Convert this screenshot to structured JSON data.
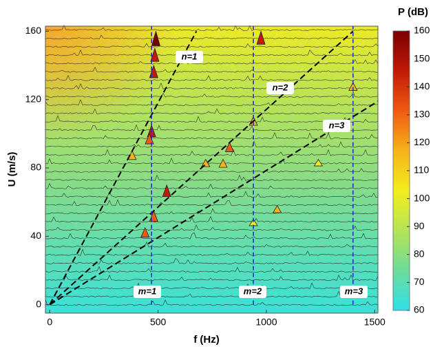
{
  "chart_data": {
    "type": "spectra",
    "xlabel": "f (Hz)",
    "ylabel": "U (m/s)",
    "colorbar_label": "P (dB)",
    "xlim": [
      -20,
      1515
    ],
    "ylim": [
      -5,
      163
    ],
    "xticks": [
      0,
      500,
      1000,
      1500
    ],
    "yticks": [
      0,
      40,
      80,
      120,
      160
    ],
    "clim": [
      60,
      160
    ],
    "cticks": [
      60,
      70,
      80,
      90,
      100,
      110,
      120,
      130,
      140,
      150,
      160
    ],
    "colormap": [
      "#2fe0e6",
      "#6cdc9a",
      "#b6e455",
      "#f2ee1e",
      "#f6b21a",
      "#ef5a12",
      "#c01a08",
      "#7a0000"
    ],
    "lines": [
      {
        "name": "n=1",
        "color": "#000000",
        "x": [
          0,
          677
        ],
        "y": [
          0,
          160
        ]
      },
      {
        "name": "n=2",
        "color": "#000000",
        "x": [
          0,
          1400
        ],
        "y": [
          0,
          160
        ]
      },
      {
        "name": "n=3",
        "color": "#000000",
        "x": [
          0,
          1515
        ],
        "y": [
          0,
          119
        ]
      },
      {
        "name": "m=1",
        "color": "#1f2fc8",
        "x": [
          470,
          470
        ],
        "y": [
          0,
          163
        ]
      },
      {
        "name": "m=2",
        "color": "#1f2fc8",
        "x": [
          940,
          940
        ],
        "y": [
          0,
          163
        ]
      },
      {
        "name": "m=3",
        "color": "#1f2fc8",
        "x": [
          1400,
          1400
        ],
        "y": [
          0,
          163
        ]
      }
    ],
    "peaks": [
      {
        "f": 490,
        "U": 160,
        "P": 160
      },
      {
        "f": 485,
        "U": 150,
        "P": 150
      },
      {
        "f": 480,
        "U": 140,
        "P": 145
      },
      {
        "f": 975,
        "U": 160,
        "P": 150
      },
      {
        "f": 470,
        "U": 105,
        "P": 140
      },
      {
        "f": 460,
        "U": 100,
        "P": 130
      },
      {
        "f": 380,
        "U": 90,
        "P": 120
      },
      {
        "f": 830,
        "U": 95,
        "P": 125
      },
      {
        "f": 800,
        "U": 85,
        "P": 115
      },
      {
        "f": 940,
        "U": 110,
        "P": 120
      },
      {
        "f": 1400,
        "U": 130,
        "P": 115
      },
      {
        "f": 440,
        "U": 45,
        "P": 125
      },
      {
        "f": 480,
        "U": 55,
        "P": 135
      },
      {
        "f": 540,
        "U": 70,
        "P": 140
      },
      {
        "f": 1050,
        "U": 58,
        "P": 110
      },
      {
        "f": 1240,
        "U": 85,
        "P": 105
      },
      {
        "f": 720,
        "U": 85,
        "P": 110
      },
      {
        "f": 940,
        "U": 50,
        "P": 105
      }
    ]
  }
}
